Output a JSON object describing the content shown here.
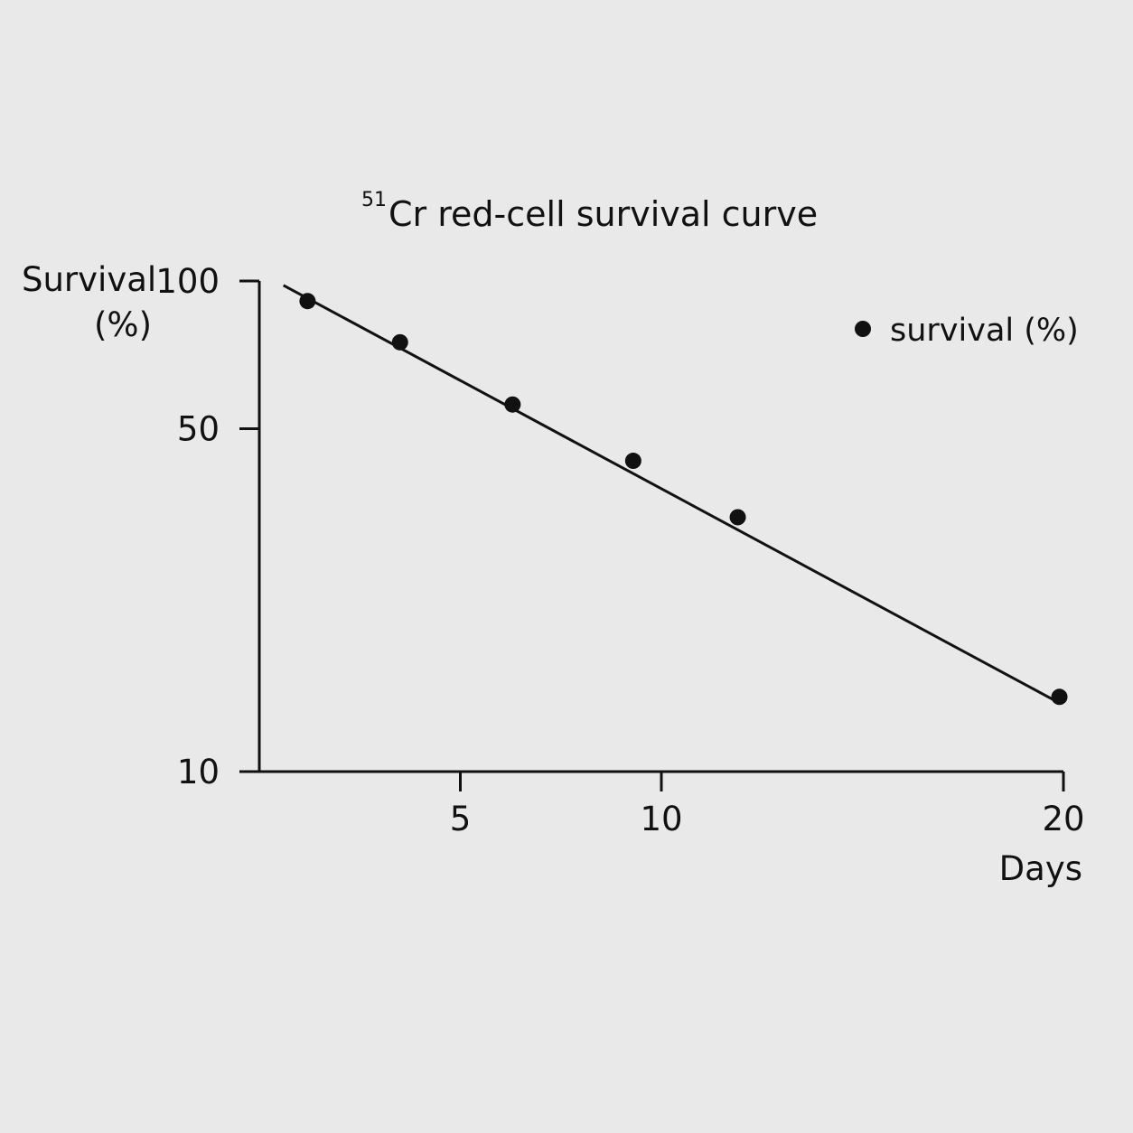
{
  "chart_data": {
    "type": "scatter",
    "title_superscript": "51",
    "title": "Cr red-cell survival curve",
    "xlabel": "Days",
    "ylabel_line1": "Survival",
    "ylabel_line2": "(%)",
    "x_scale": "linear",
    "y_scale": "log",
    "xlim": [
      0,
      20
    ],
    "ylim": [
      10,
      100
    ],
    "x_ticks": [
      5,
      10,
      20
    ],
    "x_tick_labels": [
      "5",
      "10",
      "20"
    ],
    "y_ticks": [
      10,
      50,
      100
    ],
    "y_tick_labels": [
      "10",
      "50",
      "100"
    ],
    "grid": false,
    "legend_position": "top-right",
    "series": [
      {
        "name": "survival (%)",
        "x": [
          1.2,
          3.5,
          6.3,
          9.3,
          11.9,
          19.9
        ],
        "y": [
          91,
          75,
          56,
          43,
          33,
          14.2
        ],
        "fit_line": {
          "x": [
            0.6,
            19.9
          ],
          "y": [
            98,
            13.8
          ]
        }
      }
    ],
    "colors": {
      "marker": "#111111",
      "line": "#111111",
      "background": "#e9e9e9"
    }
  }
}
